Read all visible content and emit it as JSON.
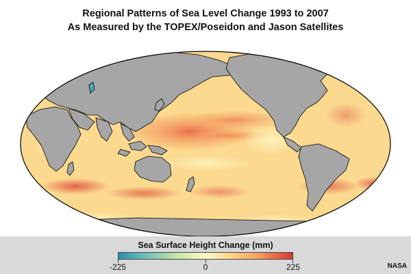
{
  "title": {
    "line1": "Regional Patterns of Sea Level Change 1993 to 2007",
    "line2": "As Measured by the TOPEX/Poseidon and Jason Satellites"
  },
  "legend": {
    "title": "Sea Surface Height Change (mm)",
    "min_label": "-225",
    "mid_label": "0",
    "max_label": "225",
    "colors": {
      "negative": "#2c8fb0",
      "neutral": "#fdfac8",
      "positive": "#d43a3a"
    }
  },
  "map": {
    "projection": "mollweide",
    "land_color": "#a6a6a6",
    "ocean_base_color": "#fbd98f"
  },
  "credit": "NASA"
}
